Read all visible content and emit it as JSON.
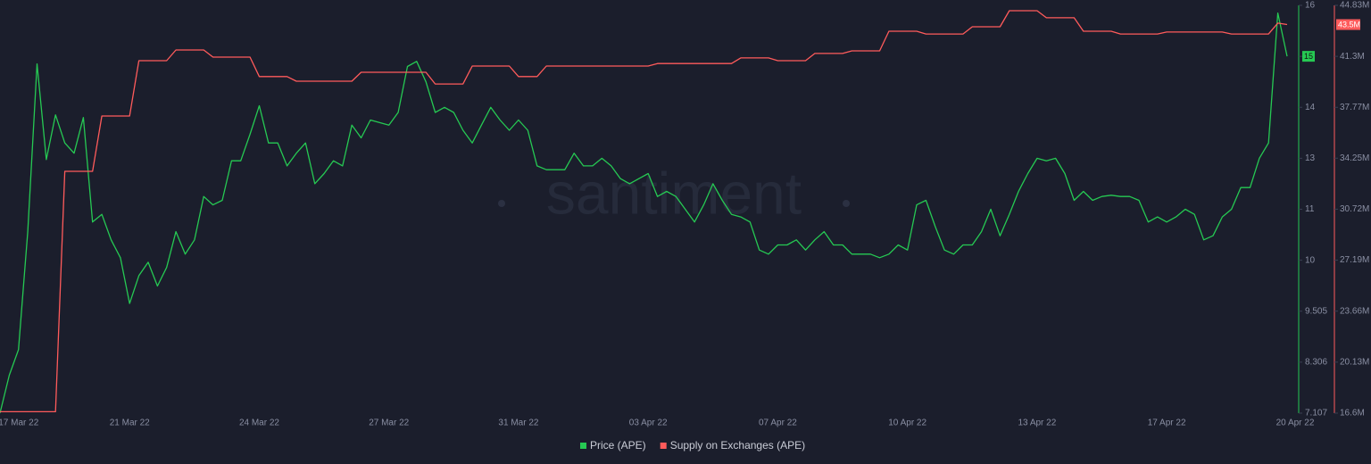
{
  "chart_data": {
    "type": "line",
    "watermark": "santiment",
    "categories": [
      null,
      null,
      "17 Mar 22",
      null,
      null,
      null,
      null,
      null,
      null,
      null,
      null,
      null,
      null,
      null,
      "21 Mar 22",
      null,
      null,
      null,
      null,
      null,
      null,
      null,
      null,
      null,
      null,
      null,
      null,
      null,
      "24 Mar 22",
      null,
      null,
      null,
      null,
      null,
      null,
      null,
      null,
      null,
      null,
      null,
      null,
      null,
      "27 Mar 22",
      null,
      null,
      null,
      null,
      null,
      null,
      null,
      null,
      null,
      null,
      null,
      null,
      null,
      "31 Mar 22",
      null,
      null,
      null,
      null,
      null,
      null,
      null,
      null,
      null,
      null,
      null,
      null,
      null,
      "03 Apr 22",
      null,
      null,
      null,
      null,
      null,
      null,
      null,
      null,
      null,
      null,
      null,
      null,
      null,
      "07 Apr 22",
      null,
      null,
      null,
      null,
      null,
      null,
      null,
      null,
      null,
      null,
      null,
      null,
      null,
      "10 Apr 22",
      null,
      null,
      null,
      null,
      null,
      null,
      null,
      null,
      null,
      null,
      null,
      null,
      null,
      "13 Apr 22",
      null,
      null,
      null,
      null,
      null,
      null,
      null,
      null,
      null,
      null,
      null,
      null,
      null,
      "17 Apr 22",
      null,
      null,
      null,
      null,
      null,
      null,
      null,
      null,
      null,
      null,
      null,
      null,
      null,
      "20 Apr 22"
    ],
    "series": [
      {
        "name": "Price (APE)",
        "color": "#26c953",
        "axis": "y",
        "values": [
          7.107,
          8.0,
          8.6,
          10.56,
          14.85,
          12.95,
          13.85,
          13.3,
          13.1,
          13.8,
          10.75,
          10.9,
          10.4,
          10.05,
          9.58,
          9.85,
          9.98,
          9.75,
          9.93,
          10.56,
          10.12,
          10.4,
          11.5,
          11.17,
          11.35,
          12.9,
          12.9,
          13.47,
          14.03,
          13.3,
          13.3,
          12.7,
          13.1,
          13.3,
          12.0,
          12.4,
          12.9,
          12.7,
          13.65,
          13.4,
          13.75,
          13.7,
          13.65,
          13.9,
          14.8,
          14.9,
          14.5,
          13.9,
          14.0,
          13.9,
          13.55,
          13.3,
          13.65,
          14.0,
          13.75,
          13.55,
          13.75,
          13.55,
          12.7,
          12.55,
          12.55,
          12.55,
          13.1,
          12.7,
          12.7,
          13.0,
          12.7,
          12.2,
          12.0,
          12.2,
          12.4,
          11.5,
          11.7,
          11.5,
          11.0,
          10.75,
          11.17,
          12.0,
          11.35,
          10.9,
          10.85,
          10.75,
          10.2,
          10.12,
          10.3,
          10.3,
          10.4,
          10.2,
          10.4,
          10.56,
          10.3,
          10.3,
          10.12,
          10.12,
          10.12,
          10.05,
          10.12,
          10.3,
          10.2,
          11.17,
          11.35,
          10.66,
          10.2,
          10.12,
          10.3,
          10.3,
          10.56,
          11.0,
          10.48,
          10.9,
          11.7,
          12.4,
          13.0,
          12.9,
          13.0,
          12.4,
          11.35,
          11.7,
          11.35,
          11.5,
          11.55,
          11.5,
          11.5,
          11.35,
          10.75,
          10.85,
          10.75,
          10.85,
          11.0,
          10.9,
          10.4,
          10.48,
          10.85,
          11.0,
          11.85,
          11.85,
          13.0,
          13.3,
          15.85,
          15,
          null
        ]
      },
      {
        "name": "Supply on Exchanges (APE)",
        "color": "#ff5b5b",
        "axis": "y2",
        "last_label": "43.5M",
        "values": [
          16700000,
          16700000,
          16700000,
          16700000,
          16700000,
          16700000,
          16700000,
          33340000,
          33340000,
          33340000,
          33340000,
          37170000,
          37170000,
          37170000,
          37170000,
          41000000,
          41000000,
          41000000,
          41000000,
          41740000,
          41740000,
          41740000,
          41740000,
          41250000,
          41250000,
          41250000,
          41250000,
          41250000,
          39900000,
          39900000,
          39900000,
          39900000,
          39580000,
          39580000,
          39580000,
          39580000,
          39580000,
          39580000,
          39580000,
          40200000,
          40200000,
          40200000,
          40200000,
          40200000,
          40200000,
          40200000,
          40200000,
          39390000,
          39390000,
          39390000,
          39390000,
          40630000,
          40630000,
          40630000,
          40630000,
          40630000,
          39900000,
          39900000,
          39900000,
          40630000,
          40630000,
          40630000,
          40630000,
          40630000,
          40630000,
          40630000,
          40630000,
          40630000,
          40630000,
          40630000,
          40630000,
          40800000,
          40800000,
          40800000,
          40800000,
          40800000,
          40800000,
          40800000,
          40800000,
          40800000,
          41190000,
          41190000,
          41190000,
          41190000,
          41000000,
          41000000,
          41000000,
          41000000,
          41500000,
          41500000,
          41500000,
          41500000,
          41680000,
          41680000,
          41680000,
          41680000,
          43040000,
          43040000,
          43040000,
          43040000,
          42850000,
          42850000,
          42850000,
          42850000,
          42850000,
          43350000,
          43350000,
          43350000,
          43350000,
          44460000,
          44460000,
          44460000,
          44460000,
          43970000,
          43970000,
          43970000,
          43970000,
          43040000,
          43040000,
          43040000,
          43040000,
          42850000,
          42850000,
          42850000,
          42850000,
          42850000,
          42980000,
          42980000,
          42980000,
          42980000,
          42980000,
          42980000,
          42980000,
          42850000,
          42850000,
          42850000,
          42850000,
          42850000,
          43600000,
          43500000,
          null
        ]
      }
    ],
    "ylim": [
      7.107,
      16
    ],
    "yscale": "ticks-even",
    "yticks": [
      7.107,
      8.306,
      9.505,
      10,
      11,
      13,
      14,
      15,
      16
    ],
    "y2lim": [
      16600000,
      44830000
    ],
    "y2ticks": [
      {
        "value": 16600000,
        "label": "16.6M"
      },
      {
        "value": 20130000,
        "label": "20.13M"
      },
      {
        "value": 23660000,
        "label": "23.66M"
      },
      {
        "value": 27190000,
        "label": "27.19M"
      },
      {
        "value": 30720000,
        "label": "30.72M"
      },
      {
        "value": 34250000,
        "label": "34.25M"
      },
      {
        "value": 37770000,
        "label": "37.77M"
      },
      {
        "value": 41300000,
        "label": "41.3M"
      },
      {
        "value": 44830000,
        "label": "44.83M"
      }
    ],
    "grid": false,
    "legend": "bottom"
  }
}
